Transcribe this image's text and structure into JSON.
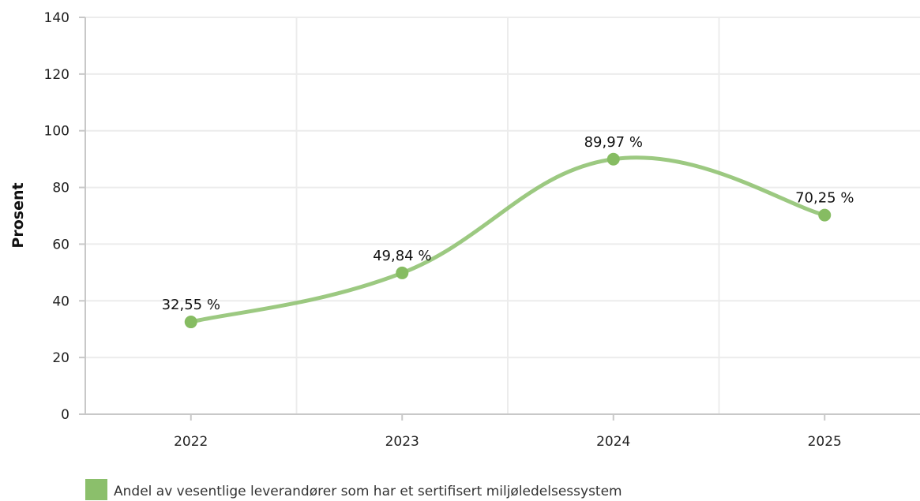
{
  "chart_data": {
    "type": "line",
    "categories": [
      "2022",
      "2023",
      "2024",
      "2025"
    ],
    "series": [
      {
        "name": "Andel av vesentlige leverandører som har et sertifisert miljøledelsessystem",
        "values": [
          32.55,
          49.84,
          89.97,
          70.25
        ],
        "data_labels": [
          "32,55 %",
          "49,84 %",
          "89,97 %",
          "70,25 %"
        ],
        "color": "#8bbf6b"
      }
    ],
    "xlabel": "",
    "ylabel": "Prosent",
    "ylim": [
      0,
      140
    ],
    "yticks": [
      "0",
      "20",
      "40",
      "60",
      "80",
      "100",
      "120",
      "140"
    ],
    "grid": true,
    "legend": "bottom-left",
    "smooth": true
  }
}
